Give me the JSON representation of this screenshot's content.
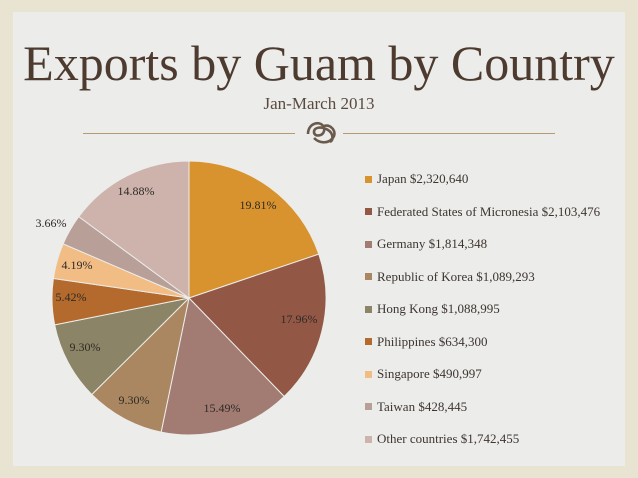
{
  "header": {
    "title": "Exports by Guam by Country",
    "subtitle": "Jan-March 2013"
  },
  "chart_data": {
    "type": "pie",
    "title": "Exports by Guam by Country",
    "subtitle": "Jan-March 2013",
    "legend_position": "right",
    "slices": [
      {
        "label": "Japan",
        "value_text": "$2,320,640",
        "value": 2320640,
        "percent_label": "19.81%",
        "color": "#d8922e"
      },
      {
        "label": "Federated States of Micronesia",
        "value_text": "$2,103,476",
        "value": 2103476,
        "percent_label": "17.96%",
        "color": "#935745"
      },
      {
        "label": "Germany",
        "value_text": "$1,814,348",
        "value": 1814348,
        "percent_label": "15.49%",
        "color": "#a27c72"
      },
      {
        "label": "Republic of Korea",
        "value_text": "$1,089,293",
        "value": 1089293,
        "percent_label": "9.30%",
        "color": "#aa8760"
      },
      {
        "label": "Hong Kong",
        "value_text": "$1,088,995",
        "value": 1088995,
        "percent_label": "9.30%",
        "color": "#8c8466"
      },
      {
        "label": "Philippines",
        "value_text": "$634,300",
        "value": 634300,
        "percent_label": "5.42%",
        "color": "#b36a2c"
      },
      {
        "label": "Singapore",
        "value_text": "$490,997",
        "value": 490997,
        "percent_label": "4.19%",
        "color": "#f2bd85"
      },
      {
        "label": "Taiwan",
        "value_text": "$428,445",
        "value": 428445,
        "percent_label": "3.66%",
        "color": "#b89f98"
      },
      {
        "label": "Other countries",
        "value_text": "$1,742,455",
        "value": 1742455,
        "percent_label": "14.88%",
        "color": "#cdb3ab"
      }
    ]
  }
}
